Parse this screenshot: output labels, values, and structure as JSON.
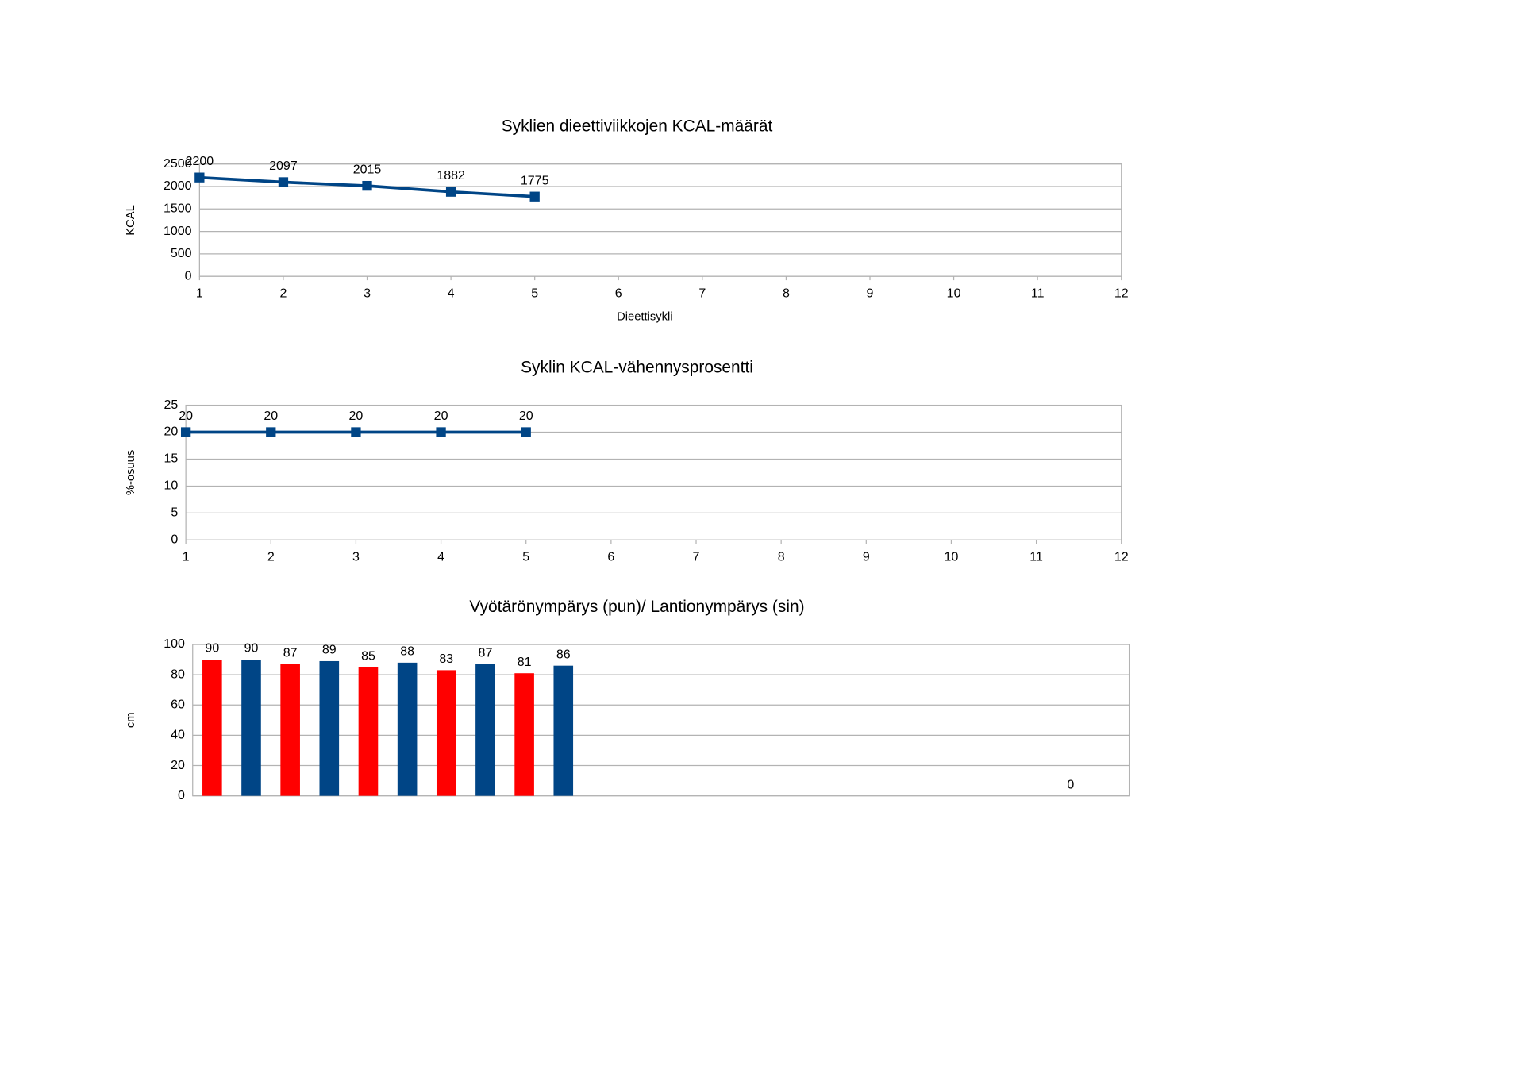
{
  "chart_data": [
    {
      "type": "line",
      "title": "Syklien dieettiviikkojen KCAL-määrät",
      "x_label": "Dieettisykli",
      "y_label": "KCAL",
      "x": [
        1,
        2,
        3,
        4,
        5
      ],
      "series": [
        {
          "color": "#004586",
          "values": [
            2200,
            2097,
            2015,
            1882,
            1775
          ]
        }
      ],
      "xlim": [
        1,
        12
      ],
      "xticks": [
        1,
        2,
        3,
        4,
        5,
        6,
        7,
        8,
        9,
        10,
        11,
        12
      ],
      "ylim": [
        0,
        2500
      ],
      "yticks": [
        0,
        500,
        1000,
        1500,
        2000,
        2500
      ],
      "grid": true
    },
    {
      "type": "line",
      "title": "Syklin KCAL-vähennysprosentti",
      "y_label": "%-osuus",
      "x": [
        1,
        2,
        3,
        4,
        5
      ],
      "series": [
        {
          "color": "#004586",
          "values": [
            20,
            20,
            20,
            20,
            20
          ]
        }
      ],
      "xlim": [
        1,
        12
      ],
      "xticks": [
        1,
        2,
        3,
        4,
        5,
        6,
        7,
        8,
        9,
        10,
        11,
        12
      ],
      "ylim": [
        0,
        25
      ],
      "yticks": [
        0,
        5,
        10,
        15,
        20,
        25
      ],
      "grid": true
    },
    {
      "type": "bar",
      "title": "Vyötärönympärys (pun)/ Lantionympärys (sin)",
      "y_label": "cm",
      "categories": [
        null,
        null,
        null,
        null,
        null,
        null,
        null,
        null,
        null,
        null,
        null,
        null
      ],
      "series": [
        {
          "color": "#ff0000",
          "values": [
            90,
            87,
            85,
            83,
            81,
            null,
            null,
            null,
            null,
            null,
            null,
            0
          ]
        },
        {
          "color": "#004586",
          "values": [
            90,
            89,
            88,
            87,
            86,
            null,
            null,
            null,
            null,
            null,
            null,
            null
          ]
        }
      ],
      "ylim": [
        0,
        100
      ],
      "yticks": [
        0,
        20,
        40,
        60,
        80,
        100
      ],
      "grid": true
    }
  ]
}
